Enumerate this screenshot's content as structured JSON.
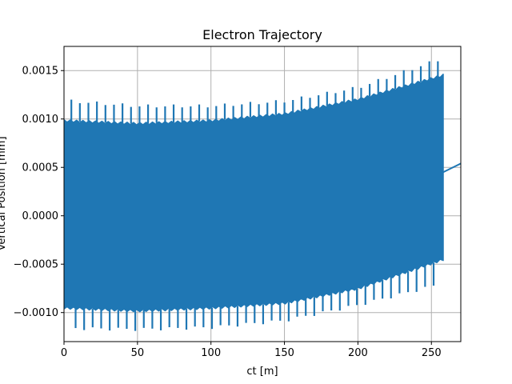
{
  "chart_data": {
    "type": "line",
    "title": "Electron Trajectory",
    "xlabel": "ct [m]",
    "ylabel": "Vertical Position [mm]",
    "xlim": [
      0,
      270
    ],
    "ylim": [
      -0.0013,
      0.00175
    ],
    "grid": true,
    "series": [
      {
        "color": "#1f77b4",
        "oscillation_range": [
          0,
          258
        ],
        "envelope_upper": [
          [
            0,
            0.00098
          ],
          [
            50,
            0.00095
          ],
          [
            100,
            0.00098
          ],
          [
            150,
            0.00105
          ],
          [
            200,
            0.0012
          ],
          [
            258,
            0.00145
          ]
        ],
        "envelope_lower": [
          [
            0,
            -0.00095
          ],
          [
            50,
            -0.00098
          ],
          [
            100,
            -0.00095
          ],
          [
            150,
            -0.0009
          ],
          [
            200,
            -0.00075
          ],
          [
            258,
            -0.00045
          ]
        ],
        "spike_upper": [
          [
            5,
            0.00118
          ],
          [
            50,
            0.00113
          ],
          [
            100,
            0.00113
          ],
          [
            150,
            0.00118
          ],
          [
            200,
            0.00132
          ],
          [
            257,
            0.00162
          ]
        ],
        "spike_lower": [
          [
            10,
            -0.00116
          ],
          [
            50,
            -0.00117
          ],
          [
            100,
            -0.00115
          ],
          [
            150,
            -0.00108
          ],
          [
            200,
            -0.00092
          ],
          [
            252,
            -0.00072
          ]
        ],
        "spike_spacing": 5.8,
        "tail": [
          [
            258,
            0.00045
          ],
          [
            270,
            0.00054
          ]
        ]
      }
    ],
    "xticks": [
      "0",
      "50",
      "100",
      "150",
      "200",
      "250"
    ],
    "xtick_values": [
      0,
      50,
      100,
      150,
      200,
      250
    ],
    "yticks": [
      "0.0015",
      "0.0010",
      "0.0005",
      "0.0000",
      "−0.0005",
      "−0.0010"
    ],
    "ytick_values": [
      0.0015,
      0.001,
      0.0005,
      0.0,
      -0.0005,
      -0.001
    ]
  }
}
